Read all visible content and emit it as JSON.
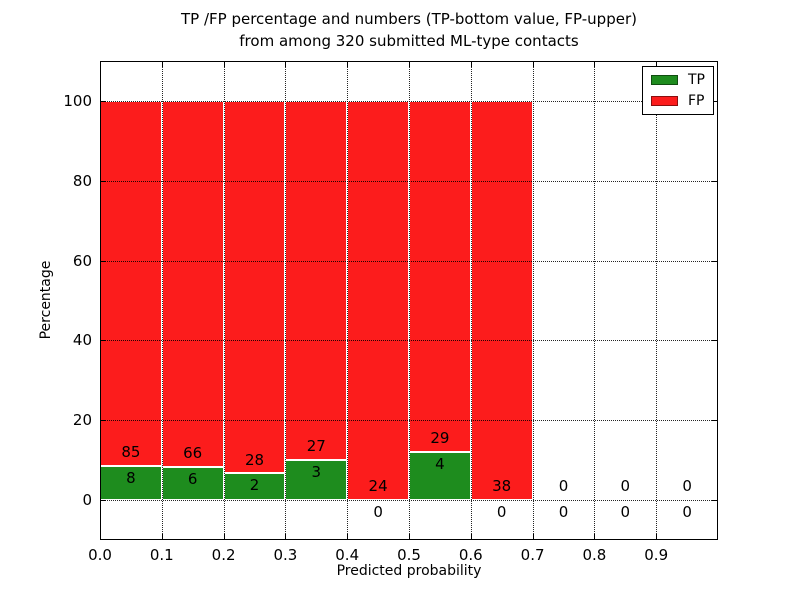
{
  "chart_data": {
    "type": "bar",
    "stacked": true,
    "normalized_to_percent": true,
    "title_lines": [
      "TP /FP percentage and numbers (TP-bottom value, FP-upper)",
      "from among 320 submitted ML-type contacts"
    ],
    "xlabel": "Predicted probability",
    "ylabel": "Percentage",
    "xlim": [
      0.0,
      1.0
    ],
    "ylim": [
      -10,
      110
    ],
    "xticks": [
      0.0,
      0.1,
      0.2,
      0.3,
      0.4,
      0.5,
      0.6,
      0.7,
      0.8,
      0.9
    ],
    "xtick_labels": [
      "0.0",
      "0.1",
      "0.2",
      "0.3",
      "0.4",
      "0.5",
      "0.6",
      "0.7",
      "0.8",
      "0.9"
    ],
    "yticks": [
      0,
      20,
      40,
      60,
      80,
      100
    ],
    "ytick_labels": [
      "0",
      "20",
      "40",
      "60",
      "80",
      "100"
    ],
    "grid": true,
    "grid_style": "dotted",
    "bar_width": 0.1,
    "total_submitted": 320,
    "bins": [
      {
        "range": [
          0.0,
          0.1
        ],
        "tp": 8,
        "fp": 85
      },
      {
        "range": [
          0.1,
          0.2
        ],
        "tp": 6,
        "fp": 66
      },
      {
        "range": [
          0.2,
          0.3
        ],
        "tp": 2,
        "fp": 28
      },
      {
        "range": [
          0.3,
          0.4
        ],
        "tp": 3,
        "fp": 27
      },
      {
        "range": [
          0.4,
          0.5
        ],
        "tp": 0,
        "fp": 24
      },
      {
        "range": [
          0.5,
          0.6
        ],
        "tp": 4,
        "fp": 29
      },
      {
        "range": [
          0.6,
          0.7
        ],
        "tp": 0,
        "fp": 38
      },
      {
        "range": [
          0.7,
          0.8
        ],
        "tp": 0,
        "fp": 0
      },
      {
        "range": [
          0.8,
          0.9
        ],
        "tp": 0,
        "fp": 0
      },
      {
        "range": [
          0.9,
          1.0
        ],
        "tp": 0,
        "fp": 0
      }
    ],
    "colors": {
      "tp": "#1e8c1e",
      "fp": "#fc1c1c",
      "grid": "#000000",
      "spine": "#000000"
    },
    "legend": {
      "position": "upper right",
      "entries": [
        {
          "label": "TP",
          "color": "#1e8c1e"
        },
        {
          "label": "FP",
          "color": "#fc1c1c"
        }
      ]
    }
  }
}
